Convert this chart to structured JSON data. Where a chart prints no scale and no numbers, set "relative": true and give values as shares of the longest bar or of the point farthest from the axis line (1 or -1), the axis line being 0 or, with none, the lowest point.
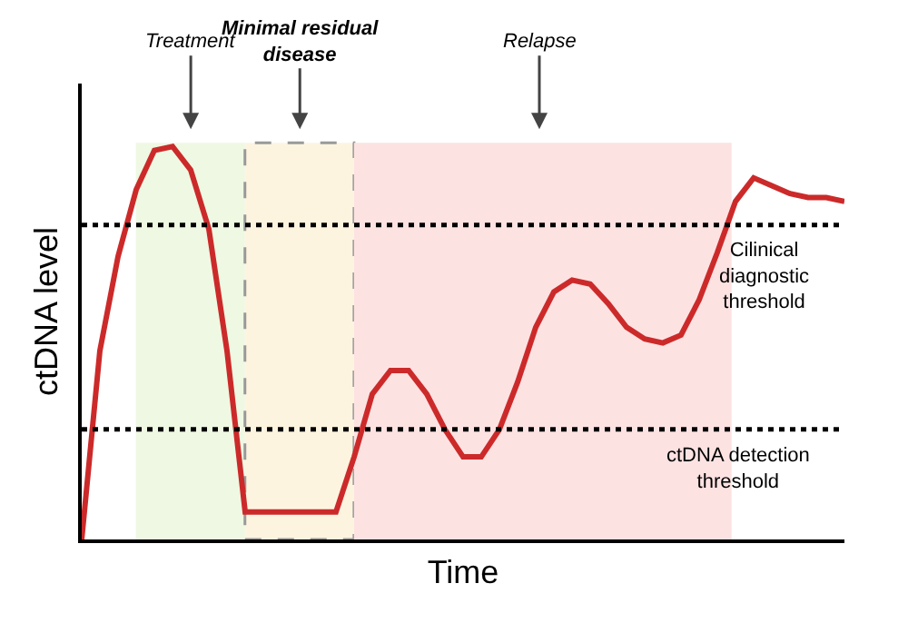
{
  "chart_data": {
    "type": "line",
    "relative": true,
    "xlabel": "Time",
    "ylabel": "ctDNA level",
    "categories": [
      null,
      null,
      null,
      null,
      null,
      null,
      null,
      null,
      null,
      null,
      null,
      null,
      null,
      null,
      null,
      null,
      null,
      null,
      null,
      null,
      null,
      null,
      null,
      null,
      null,
      null,
      null,
      null,
      null,
      null,
      null,
      null,
      null,
      null,
      null,
      null,
      null,
      null,
      null,
      null,
      null,
      null,
      null
    ],
    "series": [
      {
        "color": "#cc2a2a",
        "values": [
          0,
          0.48,
          0.72,
          0.89,
          0.99,
          1,
          0.94,
          0.79,
          0.48,
          0.07,
          0.07,
          0.07,
          0.07,
          0.07,
          0.07,
          0.21,
          0.37,
          0.43,
          0.43,
          0.37,
          0.28,
          0.21,
          0.21,
          0.28,
          0.4,
          0.54,
          0.63,
          0.66,
          0.65,
          0.6,
          0.54,
          0.51,
          0.5,
          0.52,
          0.61,
          0.73,
          0.86,
          0.92,
          0.9,
          0.88,
          0.87,
          0.87,
          0.86
        ]
      }
    ],
    "marker": "none",
    "line_style": "solid",
    "grid": false,
    "ref_lines": [
      {
        "axis": "y",
        "value": 0.8,
        "label": "Cilinical diagnostic threshold",
        "color": "#000000",
        "line_style": "dotted"
      },
      {
        "axis": "y",
        "value": 0.28,
        "label": "ctDNA detection threshold",
        "color": "#000000",
        "line_style": "dotted"
      }
    ],
    "annotations": [
      "Treatment",
      "Minimal residual disease",
      "Relapse"
    ]
  }
}
